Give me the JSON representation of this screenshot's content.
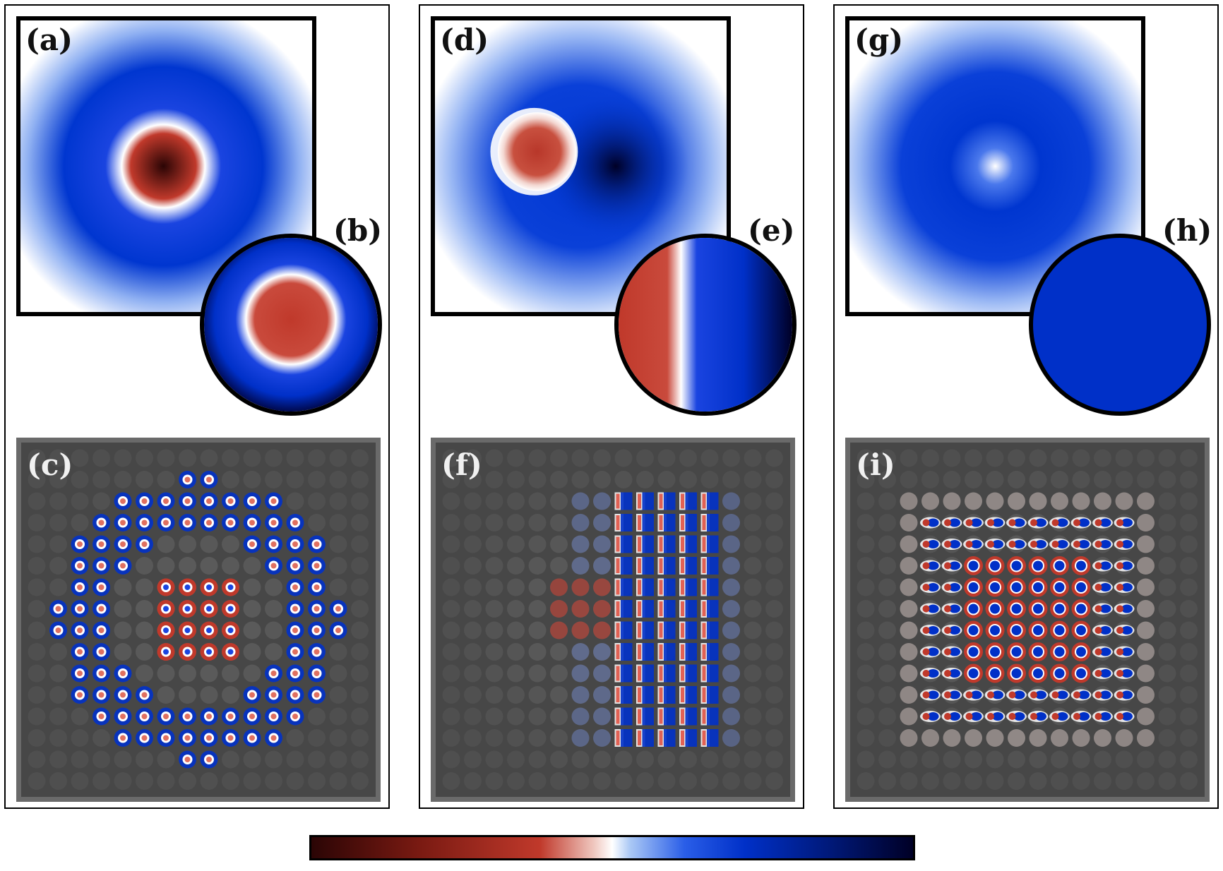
{
  "panels": [
    {
      "square_label": "(a)",
      "circle_label": "(b)",
      "lattice_label": "(c)"
    },
    {
      "square_label": "(d)",
      "circle_label": "(e)",
      "lattice_label": "(f)"
    },
    {
      "square_label": "(g)",
      "circle_label": "(h)",
      "lattice_label": "(i)"
    }
  ],
  "colors": {
    "dark_red": "#2b0505",
    "red": "#c0392b",
    "white": "#ffffff",
    "blue": "#0030c8",
    "dark_blue": "#000026",
    "lattice_background": "#474747"
  }
}
